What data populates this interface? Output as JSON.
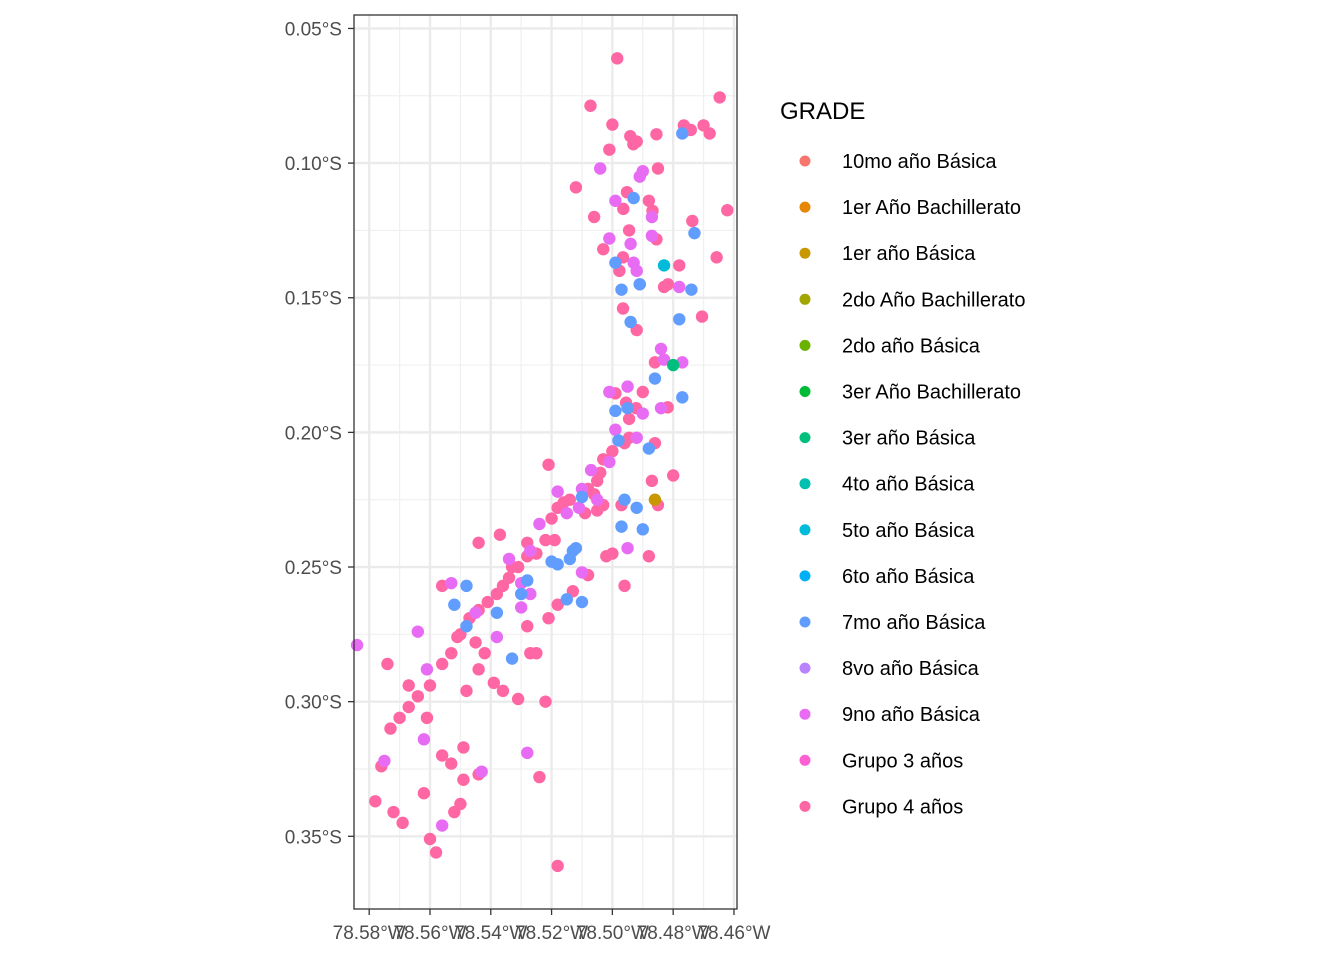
{
  "chart_data": {
    "type": "scatter",
    "title": "",
    "xlabel": "",
    "ylabel": "",
    "grid": true,
    "legend_position": "right",
    "xlim": [
      -78.585,
      -78.459
    ],
    "ylim": [
      -0.377,
      -0.045
    ],
    "x_ticks": [
      {
        "value": -78.58,
        "label": "78.58°W"
      },
      {
        "value": -78.56,
        "label": "78.56°W"
      },
      {
        "value": -78.54,
        "label": "78.54°W"
      },
      {
        "value": -78.52,
        "label": "78.52°W"
      },
      {
        "value": -78.5,
        "label": "78.50°W"
      },
      {
        "value": -78.48,
        "label": "78.48°W"
      },
      {
        "value": -78.46,
        "label": "78.46°W"
      }
    ],
    "y_ticks": [
      {
        "value": -0.05,
        "label": "0.05°S"
      },
      {
        "value": -0.1,
        "label": "0.10°S"
      },
      {
        "value": -0.15,
        "label": "0.15°S"
      },
      {
        "value": -0.2,
        "label": "0.20°S"
      },
      {
        "value": -0.25,
        "label": "0.25°S"
      },
      {
        "value": -0.3,
        "label": "0.30°S"
      },
      {
        "value": -0.35,
        "label": "0.35°S"
      }
    ],
    "legend_title": "GRADE",
    "legend": [
      {
        "name": "10mo año Básica",
        "color": "#F8766D"
      },
      {
        "name": "1er Año Bachillerato",
        "color": "#E58700"
      },
      {
        "name": "1er año Básica",
        "color": "#C99800"
      },
      {
        "name": "2do Año Bachillerato",
        "color": "#A3A500"
      },
      {
        "name": "2do año Básica",
        "color": "#6BB100"
      },
      {
        "name": "3er Año Bachillerato",
        "color": "#00BA38"
      },
      {
        "name": "3er año Básica",
        "color": "#00BF7D"
      },
      {
        "name": "4to año Básica",
        "color": "#00C0AF"
      },
      {
        "name": "5to año Básica",
        "color": "#00BCD8"
      },
      {
        "name": "6to año Básica",
        "color": "#00B0F6"
      },
      {
        "name": "7mo año Básica",
        "color": "#619CFF"
      },
      {
        "name": "8vo año Básica",
        "color": "#B983FF"
      },
      {
        "name": "9no año Básica",
        "color": "#E76BF3"
      },
      {
        "name": "Grupo 3 años",
        "color": "#FD61D1"
      },
      {
        "name": "Grupo 4 años",
        "color": "#FF67A4"
      }
    ],
    "series": [
      {
        "name": "Grupo 4 años",
        "color": "#FF67A4",
        "points": [
          [
            -78.4984,
            -0.0611
          ],
          [
            -78.5072,
            -0.0787
          ],
          [
            -78.5,
            -0.0857
          ],
          [
            -78.4941,
            -0.09
          ],
          [
            -78.4931,
            -0.093
          ],
          [
            -78.4855,
            -0.0893
          ],
          [
            -78.4765,
            -0.086
          ],
          [
            -78.4764,
            -0.0883
          ],
          [
            -78.4742,
            -0.0877
          ],
          [
            -78.4647,
            -0.0756
          ],
          [
            -78.485,
            -0.102
          ],
          [
            -78.4952,
            -0.1108
          ],
          [
            -78.4964,
            -0.117
          ],
          [
            -78.488,
            -0.114
          ],
          [
            -78.4868,
            -0.1177
          ],
          [
            -78.4737,
            -0.1215
          ],
          [
            -78.4622,
            -0.1175
          ],
          [
            -78.4855,
            -0.1283
          ],
          [
            -78.4945,
            -0.125
          ],
          [
            -78.4965,
            -0.135
          ],
          [
            -78.4977,
            -0.14
          ],
          [
            -78.491,
            -0.145
          ],
          [
            -78.483,
            -0.146
          ],
          [
            -78.4817,
            -0.145
          ],
          [
            -78.4705,
            -0.157
          ],
          [
            -78.4657,
            -0.135
          ],
          [
            -78.478,
            -0.138
          ],
          [
            -78.4965,
            -0.154
          ],
          [
            -78.492,
            -0.162
          ],
          [
            -78.486,
            -0.174
          ],
          [
            -78.49,
            -0.185
          ],
          [
            -78.4818,
            -0.1907
          ],
          [
            -78.4955,
            -0.189
          ],
          [
            -78.499,
            -0.1855
          ],
          [
            -78.4922,
            -0.191
          ],
          [
            -78.4945,
            -0.195
          ],
          [
            -78.4945,
            -0.202
          ],
          [
            -78.496,
            -0.204
          ],
          [
            -78.5,
            -0.207
          ],
          [
            -78.503,
            -0.21
          ],
          [
            -78.504,
            -0.215
          ],
          [
            -78.505,
            -0.218
          ],
          [
            -78.508,
            -0.221
          ],
          [
            -78.506,
            -0.223
          ],
          [
            -78.503,
            -0.227
          ],
          [
            -78.505,
            -0.229
          ],
          [
            -78.509,
            -0.23
          ],
          [
            -78.514,
            -0.225
          ],
          [
            -78.516,
            -0.226
          ],
          [
            -78.518,
            -0.228
          ],
          [
            -78.52,
            -0.232
          ],
          [
            -78.522,
            -0.24
          ],
          [
            -78.525,
            -0.245
          ],
          [
            -78.528,
            -0.246
          ],
          [
            -78.531,
            -0.25
          ],
          [
            -78.534,
            -0.254
          ],
          [
            -78.536,
            -0.257
          ],
          [
            -78.538,
            -0.26
          ],
          [
            -78.541,
            -0.263
          ],
          [
            -78.544,
            -0.266
          ],
          [
            -78.547,
            -0.269
          ],
          [
            -78.55,
            -0.275
          ],
          [
            -78.553,
            -0.282
          ],
          [
            -78.556,
            -0.286
          ],
          [
            -78.56,
            -0.294
          ],
          [
            -78.564,
            -0.298
          ],
          [
            -78.567,
            -0.302
          ],
          [
            -78.57,
            -0.306
          ],
          [
            -78.573,
            -0.31
          ],
          [
            -78.576,
            -0.324
          ],
          [
            -78.578,
            -0.337
          ],
          [
            -78.572,
            -0.341
          ],
          [
            -78.569,
            -0.345
          ],
          [
            -78.56,
            -0.351
          ],
          [
            -78.558,
            -0.356
          ],
          [
            -78.552,
            -0.341
          ],
          [
            -78.549,
            -0.329
          ],
          [
            -78.544,
            -0.327
          ],
          [
            -78.553,
            -0.323
          ],
          [
            -78.556,
            -0.32
          ],
          [
            -78.549,
            -0.317
          ],
          [
            -78.548,
            -0.296
          ],
          [
            -78.544,
            -0.288
          ],
          [
            -78.542,
            -0.282
          ],
          [
            -78.545,
            -0.278
          ],
          [
            -78.539,
            -0.293
          ],
          [
            -78.536,
            -0.296
          ],
          [
            -78.531,
            -0.299
          ],
          [
            -78.522,
            -0.3
          ],
          [
            -78.524,
            -0.328
          ],
          [
            -78.525,
            -0.282
          ],
          [
            -78.528,
            -0.272
          ],
          [
            -78.521,
            -0.269
          ],
          [
            -78.518,
            -0.264
          ],
          [
            -78.513,
            -0.259
          ],
          [
            -78.508,
            -0.253
          ],
          [
            -78.502,
            -0.246
          ],
          [
            -78.5,
            -0.245
          ],
          [
            -78.496,
            -0.257
          ],
          [
            -78.488,
            -0.246
          ],
          [
            -78.485,
            -0.227
          ],
          [
            -78.487,
            -0.218
          ],
          [
            -78.48,
            -0.216
          ],
          [
            -78.486,
            -0.204
          ],
          [
            -78.519,
            -0.24
          ],
          [
            -78.528,
            -0.241
          ],
          [
            -78.533,
            -0.25
          ],
          [
            -78.537,
            -0.238
          ],
          [
            -78.544,
            -0.241
          ],
          [
            -78.556,
            -0.257
          ],
          [
            -78.551,
            -0.276
          ],
          [
            -78.574,
            -0.286
          ],
          [
            -78.567,
            -0.294
          ],
          [
            -78.561,
            -0.306
          ],
          [
            -78.55,
            -0.338
          ],
          [
            -78.562,
            -0.334
          ],
          [
            -78.518,
            -0.361
          ],
          [
            -78.512,
            -0.109
          ],
          [
            -78.506,
            -0.12
          ],
          [
            -78.503,
            -0.132
          ],
          [
            -78.501,
            -0.095
          ],
          [
            -78.492,
            -0.092
          ],
          [
            -78.47,
            -0.086
          ],
          [
            -78.468,
            -0.089
          ],
          [
            -78.497,
            -0.227
          ],
          [
            -78.527,
            -0.282
          ],
          [
            -78.521,
            -0.212
          ]
        ]
      },
      {
        "name": "9no año Básica",
        "color": "#E76BF3",
        "points": [
          [
            -78.504,
            -0.102
          ],
          [
            -78.499,
            -0.114
          ],
          [
            -78.501,
            -0.128
          ],
          [
            -78.491,
            -0.105
          ],
          [
            -78.49,
            -0.103
          ],
          [
            -78.493,
            -0.137
          ],
          [
            -78.494,
            -0.13
          ],
          [
            -78.492,
            -0.14
          ],
          [
            -78.487,
            -0.127
          ],
          [
            -78.487,
            -0.12
          ],
          [
            -78.483,
            -0.173
          ],
          [
            -78.484,
            -0.169
          ],
          [
            -78.477,
            -0.174
          ],
          [
            -78.49,
            -0.193
          ],
          [
            -78.492,
            -0.202
          ],
          [
            -78.495,
            -0.183
          ],
          [
            -78.501,
            -0.185
          ],
          [
            -78.499,
            -0.199
          ],
          [
            -78.501,
            -0.211
          ],
          [
            -78.507,
            -0.214
          ],
          [
            -78.51,
            -0.221
          ],
          [
            -78.511,
            -0.228
          ],
          [
            -78.515,
            -0.23
          ],
          [
            -78.518,
            -0.222
          ],
          [
            -78.524,
            -0.234
          ],
          [
            -78.527,
            -0.244
          ],
          [
            -78.53,
            -0.256
          ],
          [
            -78.534,
            -0.247
          ],
          [
            -78.538,
            -0.276
          ],
          [
            -78.545,
            -0.267
          ],
          [
            -78.553,
            -0.256
          ],
          [
            -78.564,
            -0.274
          ],
          [
            -78.561,
            -0.288
          ],
          [
            -78.584,
            -0.279
          ],
          [
            -78.575,
            -0.322
          ],
          [
            -78.562,
            -0.314
          ],
          [
            -78.556,
            -0.346
          ],
          [
            -78.543,
            -0.326
          ],
          [
            -78.528,
            -0.319
          ],
          [
            -78.53,
            -0.265
          ],
          [
            -78.527,
            -0.26
          ],
          [
            -78.51,
            -0.252
          ],
          [
            -78.505,
            -0.225
          ],
          [
            -78.495,
            -0.243
          ],
          [
            -78.484,
            -0.191
          ],
          [
            -78.478,
            -0.146
          ]
        ]
      },
      {
        "name": "7mo año Básica",
        "color": "#619CFF",
        "points": [
          [
            -78.477,
            -0.089
          ],
          [
            -78.493,
            -0.113
          ],
          [
            -78.499,
            -0.137
          ],
          [
            -78.497,
            -0.147
          ],
          [
            -78.494,
            -0.159
          ],
          [
            -78.486,
            -0.18
          ],
          [
            -78.488,
            -0.206
          ],
          [
            -78.491,
            -0.145
          ],
          [
            -78.474,
            -0.147
          ],
          [
            -78.478,
            -0.158
          ],
          [
            -78.477,
            -0.187
          ],
          [
            -78.473,
            -0.126
          ],
          [
            -78.499,
            -0.192
          ],
          [
            -78.498,
            -0.203
          ],
          [
            -78.496,
            -0.225
          ],
          [
            -78.492,
            -0.228
          ],
          [
            -78.497,
            -0.235
          ],
          [
            -78.49,
            -0.236
          ],
          [
            -78.495,
            -0.191
          ],
          [
            -78.51,
            -0.224
          ],
          [
            -78.512,
            -0.243
          ],
          [
            -78.513,
            -0.244
          ],
          [
            -78.514,
            -0.247
          ],
          [
            -78.518,
            -0.249
          ],
          [
            -78.515,
            -0.262
          ],
          [
            -78.51,
            -0.263
          ],
          [
            -78.53,
            -0.26
          ],
          [
            -78.528,
            -0.255
          ],
          [
            -78.538,
            -0.267
          ],
          [
            -78.533,
            -0.284
          ],
          [
            -78.548,
            -0.257
          ],
          [
            -78.552,
            -0.264
          ],
          [
            -78.548,
            -0.272
          ],
          [
            -78.52,
            -0.248
          ]
        ]
      },
      {
        "name": "5to año Básica",
        "color": "#00BCD8",
        "points": [
          [
            -78.483,
            -0.138
          ]
        ]
      },
      {
        "name": "3er año Básica",
        "color": "#00BF7D",
        "points": [
          [
            -78.48,
            -0.175
          ]
        ]
      },
      {
        "name": "1er año Básica",
        "color": "#C99800",
        "points": [
          [
            -78.486,
            -0.225
          ]
        ]
      }
    ]
  }
}
